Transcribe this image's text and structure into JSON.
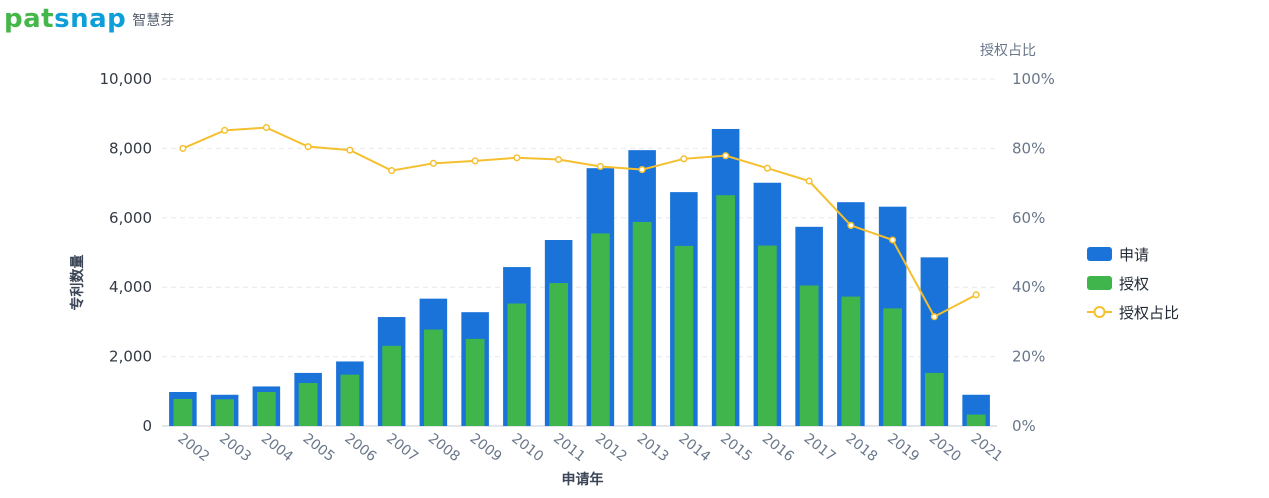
{
  "brand": {
    "word_a": "pat",
    "word_b": "snap",
    "cn": "智慧芽"
  },
  "chart_data": {
    "type": "bar+line",
    "categories": [
      "2002",
      "2003",
      "2004",
      "2005",
      "2006",
      "2007",
      "2008",
      "2009",
      "2010",
      "2011",
      "2012",
      "2013",
      "2014",
      "2015",
      "2016",
      "2017",
      "2018",
      "2019",
      "2020",
      "2021"
    ],
    "series": [
      {
        "name": "申请",
        "type": "bar",
        "axis": "left",
        "color": "#1a73d9",
        "values": [
          980,
          900,
          1140,
          1530,
          1860,
          3140,
          3670,
          3280,
          4580,
          5360,
          7430,
          7950,
          6740,
          8560,
          7010,
          5740,
          6450,
          6320,
          4860,
          900
        ]
      },
      {
        "name": "授权",
        "type": "bar",
        "axis": "left",
        "color": "#3fb54c",
        "values": [
          780,
          770,
          980,
          1240,
          1480,
          2310,
          2780,
          2510,
          3530,
          4120,
          5550,
          5880,
          5190,
          6650,
          5200,
          4050,
          3730,
          3390,
          1530,
          330
        ]
      },
      {
        "name": "授权占比",
        "type": "line",
        "axis": "right",
        "color": "#f5bf2f",
        "values": [
          80,
          85.2,
          86,
          80.5,
          79.5,
          73.6,
          75.7,
          76.4,
          77.3,
          76.8,
          74.8,
          73.9,
          77,
          77.9,
          74.3,
          70.6,
          57.8,
          53.6,
          31.5,
          37.8
        ]
      }
    ],
    "left_axis": {
      "title": "专利数量",
      "min": 0,
      "max": 10000,
      "ticks": [
        0,
        2000,
        4000,
        6000,
        8000,
        10000
      ],
      "tick_labels": [
        "0",
        "2,000",
        "4,000",
        "6,000",
        "8,000",
        "10,000"
      ]
    },
    "right_axis": {
      "title": "授权占比",
      "min": 0,
      "max": 100,
      "tick_labels": [
        "0%",
        "20%",
        "40%",
        "60%",
        "80%",
        "100%"
      ]
    },
    "x_axis": {
      "title": "申请年"
    },
    "grid": true,
    "legend_position": "right"
  }
}
